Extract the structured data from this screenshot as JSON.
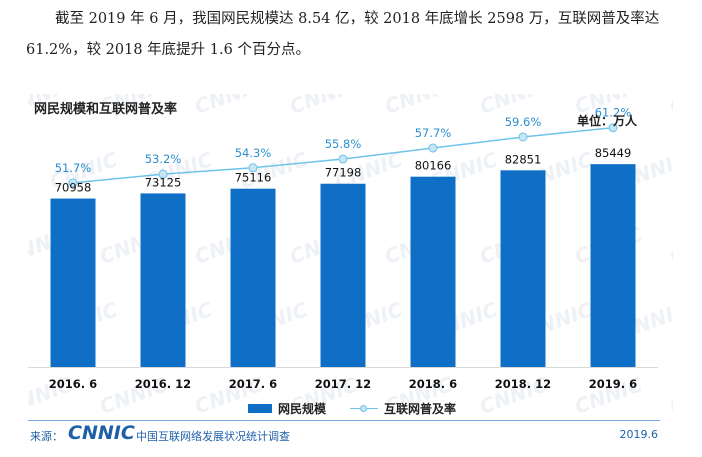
{
  "intro_text": "截至 2019 年 6 月，我国网民规模达 8.54 亿，较 2018 年底增长 2598 万，互联网普及率达 61.2%，较 2018 年底提升 1.6 个百分点。",
  "chart_data": {
    "type": "bar",
    "title": "网民规模和互联网普及率",
    "unit_label": "单位：万人",
    "categories": [
      "2016. 6",
      "2016. 12",
      "2017. 6",
      "2017. 12",
      "2018. 6",
      "2018. 12",
      "2019. 6"
    ],
    "series": [
      {
        "name": "网民规模",
        "kind": "bar",
        "color": "#0f6fc6",
        "values": [
          70958,
          73125,
          75116,
          77198,
          80166,
          82851,
          85449
        ]
      },
      {
        "name": "互联网普及率",
        "kind": "line",
        "color": "#6fc3ea",
        "values": [
          51.7,
          53.2,
          54.3,
          55.8,
          57.7,
          59.6,
          61.2
        ],
        "labels": [
          "51.7%",
          "53.2%",
          "54.3%",
          "55.8%",
          "57.7%",
          "59.6%",
          "61.2%"
        ]
      }
    ],
    "bar_ylim": [
      0,
      115000
    ],
    "line_ylim": [
      20,
      67
    ],
    "legend": [
      "网民规模",
      "互联网普及率"
    ],
    "legend_position": "bottom-center"
  },
  "watermark": "CNNIC",
  "footer": {
    "source_label": "来源：",
    "logo": "CNNIC",
    "org": "中国互联网络发展状况统计调查",
    "date": "2019.6"
  }
}
